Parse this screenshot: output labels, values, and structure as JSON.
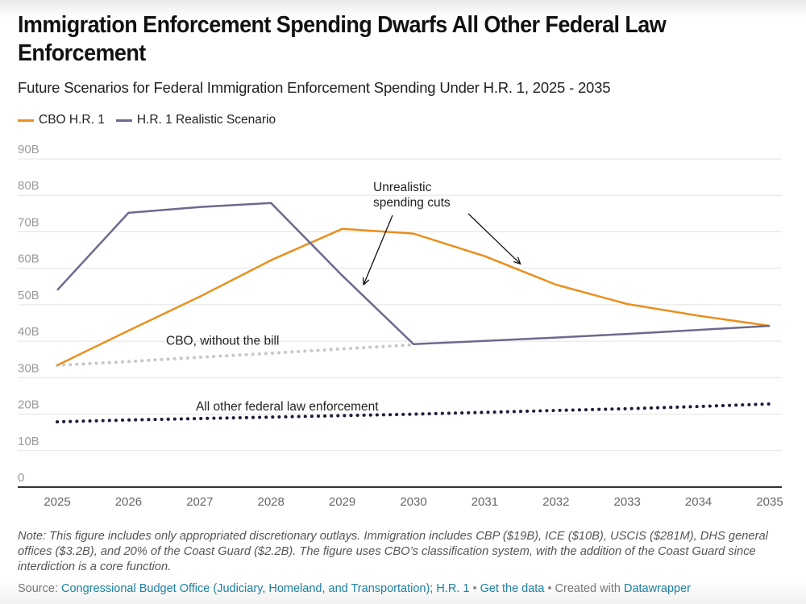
{
  "header": {
    "title": "Immigration Enforcement Spending Dwarfs All Other Federal Law Enforcement",
    "subtitle": "Future Scenarios for Federal Immigration Enforcement Spending Under H.R. 1, 2025 - 2035"
  },
  "legend": [
    {
      "label": "CBO H.R. 1",
      "color": "#e8901f"
    },
    {
      "label": "H.R. 1 Realistic Scenario",
      "color": "#6b6a8e"
    }
  ],
  "chart_data": {
    "type": "line",
    "title": "Immigration Enforcement Spending Dwarfs All Other Federal Law Enforcement",
    "subtitle": "Future Scenarios for Federal Immigration Enforcement Spending Under H.R. 1, 2025 - 2035",
    "xlabel": "",
    "ylabel": "",
    "x": [
      2025,
      2026,
      2027,
      2028,
      2029,
      2030,
      2031,
      2032,
      2033,
      2034,
      2035
    ],
    "x_tick_labels": [
      "2025",
      "2026",
      "2027",
      "2028",
      "2029",
      "2030",
      "2031",
      "2032",
      "2033",
      "2034",
      "2035"
    ],
    "y_ticks": [
      0,
      10,
      20,
      30,
      40,
      50,
      60,
      70,
      80,
      90
    ],
    "y_tick_labels": [
      "0",
      "10B",
      "20B",
      "30B",
      "40B",
      "50B",
      "60B",
      "70B",
      "80B",
      "90B"
    ],
    "ylim": [
      0,
      90
    ],
    "grid": true,
    "legend_position": "top-left",
    "series": [
      {
        "name": "CBO H.R. 1",
        "color": "#e8901f",
        "style": "solid",
        "values": [
          33.4,
          42.9,
          52.2,
          62.2,
          70.8,
          69.5,
          63.3,
          55.5,
          50.2,
          47.0,
          44.2
        ]
      },
      {
        "name": "H.R. 1 Realistic Scenario",
        "color": "#6b6a8e",
        "style": "solid",
        "values": [
          54.0,
          75.2,
          76.8,
          77.9,
          58.0,
          39.2,
          40.1,
          41.0,
          42.0,
          43.1,
          44.2
        ]
      },
      {
        "name": "CBO, without the bill",
        "color": "#c8c8c8",
        "style": "dotted",
        "values": [
          33.4,
          34.4,
          35.6,
          36.7,
          37.9,
          39.0,
          null,
          null,
          null,
          null,
          null
        ]
      },
      {
        "name": "All other federal law enforcement",
        "color": "#1e1b3a",
        "style": "dotted",
        "values": [
          17.9,
          18.4,
          18.8,
          19.2,
          19.6,
          20.0,
          20.5,
          21.0,
          21.5,
          22.1,
          22.8
        ]
      }
    ],
    "annotations": [
      {
        "text_lines": [
          "Unrealistic",
          "spending cuts"
        ],
        "arrows_to": [
          {
            "x": 2029.3,
            "y": 55.5
          },
          {
            "x": 2031.5,
            "y": 61.2
          }
        ]
      },
      {
        "text": "CBO, without the bill",
        "x": 2028.1,
        "y": 39.5
      },
      {
        "text": "All other federal law enforcement",
        "x": 2027.5,
        "y": 22.3
      }
    ]
  },
  "footer": {
    "note": "Note: This figure includes only appropriated discretionary outlays. Immigration includes CBP ($19B), ICE ($10B), USCIS ($281M), DHS general offices ($3.2B), and 20% of the Coast Guard ($2.2B). The figure uses CBO’s classification system, with the addition of the Coast Guard since interdiction is a core function.",
    "source_label": "Source:",
    "source_link": "Congressional Budget Office (Judiciary, Homeland, and Transportation); H.R. 1",
    "separator": "•",
    "get_data_link": "Get the data",
    "created_with": "Created with",
    "datawrapper_link": "Datawrapper"
  }
}
